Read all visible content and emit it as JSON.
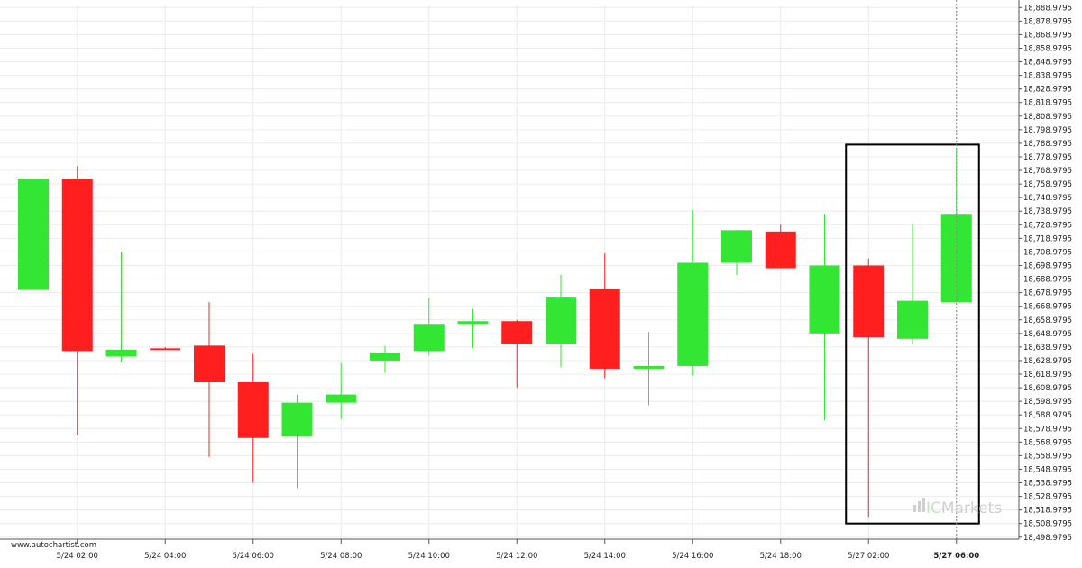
{
  "site_label": "www.autochartist.com",
  "brand": {
    "prefix": "IC",
    "name": "Markets"
  },
  "colors": {
    "up": "#33e633",
    "down": "#ff1f1f",
    "grid": "#ececec",
    "axis": "#555555",
    "highlight_box": "#000000",
    "cursor_line": "#888888"
  },
  "chart_data": {
    "type": "candlestick",
    "title": "",
    "xlabel": "",
    "ylabel": "",
    "ylim": [
      18497.5,
      18890.5
    ],
    "grid": true,
    "y_ticks": [
      "18,888.9795",
      "18,878.9795",
      "18,868.9795",
      "18,858.9795",
      "18,848.9795",
      "18,838.9795",
      "18,828.9795",
      "18,818.9795",
      "18,808.9795",
      "18,798.9795",
      "18,788.9795",
      "18,778.9795",
      "18,768.9795",
      "18,758.9795",
      "18,748.9795",
      "18,738.9795",
      "18,728.9795",
      "18,718.9795",
      "18,708.9795",
      "18,698.9795",
      "18,688.9795",
      "18,678.9795",
      "18,668.9795",
      "18,658.9795",
      "18,648.9795",
      "18,638.9795",
      "18,628.9795",
      "18,618.9795",
      "18,608.9795",
      "18,598.9795",
      "18,588.9795",
      "18,578.9795",
      "18,568.9795",
      "18,558.9795",
      "18,548.9795",
      "18,538.9795",
      "18,528.9795",
      "18,518.9795",
      "18,508.9795",
      "18,498.9795"
    ],
    "x_ticks": [
      {
        "label": "5/24 02:00",
        "index": 1
      },
      {
        "label": "5/24 04:00",
        "index": 3
      },
      {
        "label": "5/24 06:00",
        "index": 5
      },
      {
        "label": "5/24 08:00",
        "index": 7
      },
      {
        "label": "5/24 10:00",
        "index": 9
      },
      {
        "label": "5/24 12:00",
        "index": 11
      },
      {
        "label": "5/24 14:00",
        "index": 13
      },
      {
        "label": "5/24 16:00",
        "index": 15
      },
      {
        "label": "5/24 18:00",
        "index": 17
      },
      {
        "label": "5/27 02:00",
        "index": 19
      },
      {
        "label": "5/27 06:00",
        "index": 21,
        "bold": true
      }
    ],
    "candles": [
      {
        "open": 18681,
        "high": 18763,
        "low": 18681,
        "close": 18763
      },
      {
        "open": 18763,
        "high": 18772,
        "low": 18574,
        "close": 18636
      },
      {
        "open": 18632,
        "high": 18709,
        "low": 18628,
        "close": 18637
      },
      {
        "open": 18638,
        "high": 18639,
        "low": 18637,
        "close": 18637
      },
      {
        "open": 18640,
        "high": 18672,
        "low": 18558,
        "close": 18613
      },
      {
        "open": 18613,
        "high": 18634,
        "low": 18539,
        "close": 18572
      },
      {
        "open": 18573,
        "high": 18604,
        "low": 18535,
        "close": 18598
      },
      {
        "open": 18598,
        "high": 18627,
        "low": 18586,
        "close": 18604
      },
      {
        "open": 18629,
        "high": 18640,
        "low": 18620,
        "close": 18635
      },
      {
        "open": 18636,
        "high": 18675,
        "low": 18633,
        "close": 18656
      },
      {
        "open": 18656,
        "high": 18667,
        "low": 18638,
        "close": 18658
      },
      {
        "open": 18658,
        "high": 18659,
        "low": 18609,
        "close": 18641
      },
      {
        "open": 18641,
        "high": 18692,
        "low": 18624,
        "close": 18676
      },
      {
        "open": 18682,
        "high": 18708,
        "low": 18616,
        "close": 18623
      },
      {
        "open": 18623,
        "high": 18650,
        "low": 18596,
        "close": 18625
      },
      {
        "open": 18625,
        "high": 18740,
        "low": 18618,
        "close": 18701
      },
      {
        "open": 18701,
        "high": 18725,
        "low": 18692,
        "close": 18725
      },
      {
        "open": 18724,
        "high": 18729,
        "low": 18697,
        "close": 18697
      },
      {
        "open": 18649,
        "high": 18737,
        "low": 18585,
        "close": 18699
      },
      {
        "open": 18699,
        "high": 18704,
        "low": 18514,
        "close": 18646
      },
      {
        "open": 18645,
        "high": 18730,
        "low": 18641,
        "close": 18673
      },
      {
        "open": 18672,
        "high": 18785,
        "low": 18672,
        "close": 18737
      }
    ],
    "highlight": {
      "from_index": 19,
      "to_index": 21,
      "low": 18509,
      "high": 18788
    }
  }
}
